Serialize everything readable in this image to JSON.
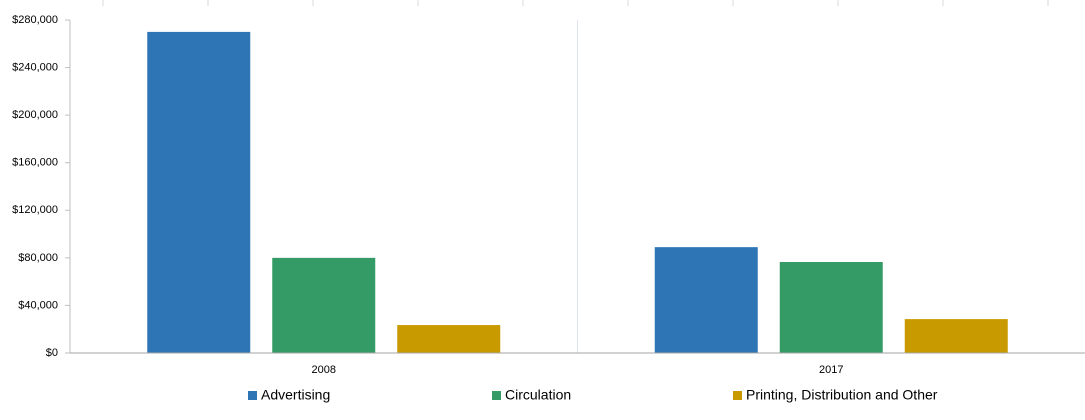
{
  "chart_data": {
    "type": "bar",
    "categories": [
      "2008",
      "2017"
    ],
    "series": [
      {
        "name": "Advertising",
        "color": "#2e75b6",
        "values": [
          270000,
          89000
        ]
      },
      {
        "name": "Circulation",
        "color": "#359b66",
        "values": [
          80000,
          76500
        ]
      },
      {
        "name": "Printing, Distribution and Other",
        "color": "#c99a00",
        "values": [
          23500,
          28500
        ]
      }
    ],
    "ylim": [
      0,
      280000
    ],
    "yticks": [
      {
        "value": 0,
        "label": "$0"
      },
      {
        "value": 40000,
        "label": "$40,000"
      },
      {
        "value": 80000,
        "label": "$80,000"
      },
      {
        "value": 120000,
        "label": "$120,000"
      },
      {
        "value": 160000,
        "label": "$160,000"
      },
      {
        "value": 200000,
        "label": "$200,000"
      },
      {
        "value": 240000,
        "label": "$240,000"
      },
      {
        "value": 280000,
        "label": "$280,000"
      }
    ],
    "legend": "bottom"
  }
}
